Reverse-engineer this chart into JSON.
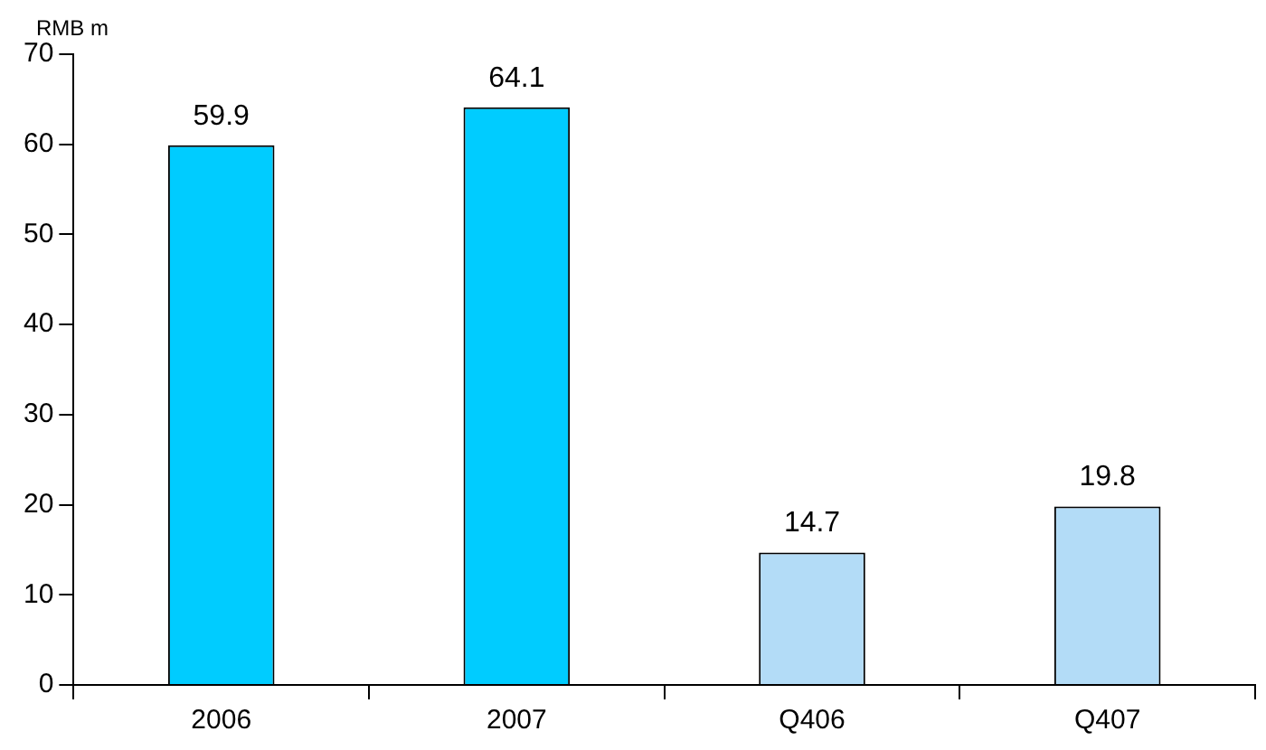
{
  "chart_data": {
    "type": "bar",
    "ylabel": "RMB m",
    "categories": [
      "2006",
      "2007",
      "Q406",
      "Q407"
    ],
    "values": [
      59.9,
      64.1,
      14.7,
      19.8
    ],
    "colors": [
      "#00ccff",
      "#00ccff",
      "#b3dcf7",
      "#b3dcf7"
    ],
    "ylim": [
      0,
      70
    ],
    "yticks": [
      0,
      10,
      20,
      30,
      40,
      50,
      60,
      70
    ],
    "grid": false,
    "legend": false,
    "data_labels": true
  }
}
